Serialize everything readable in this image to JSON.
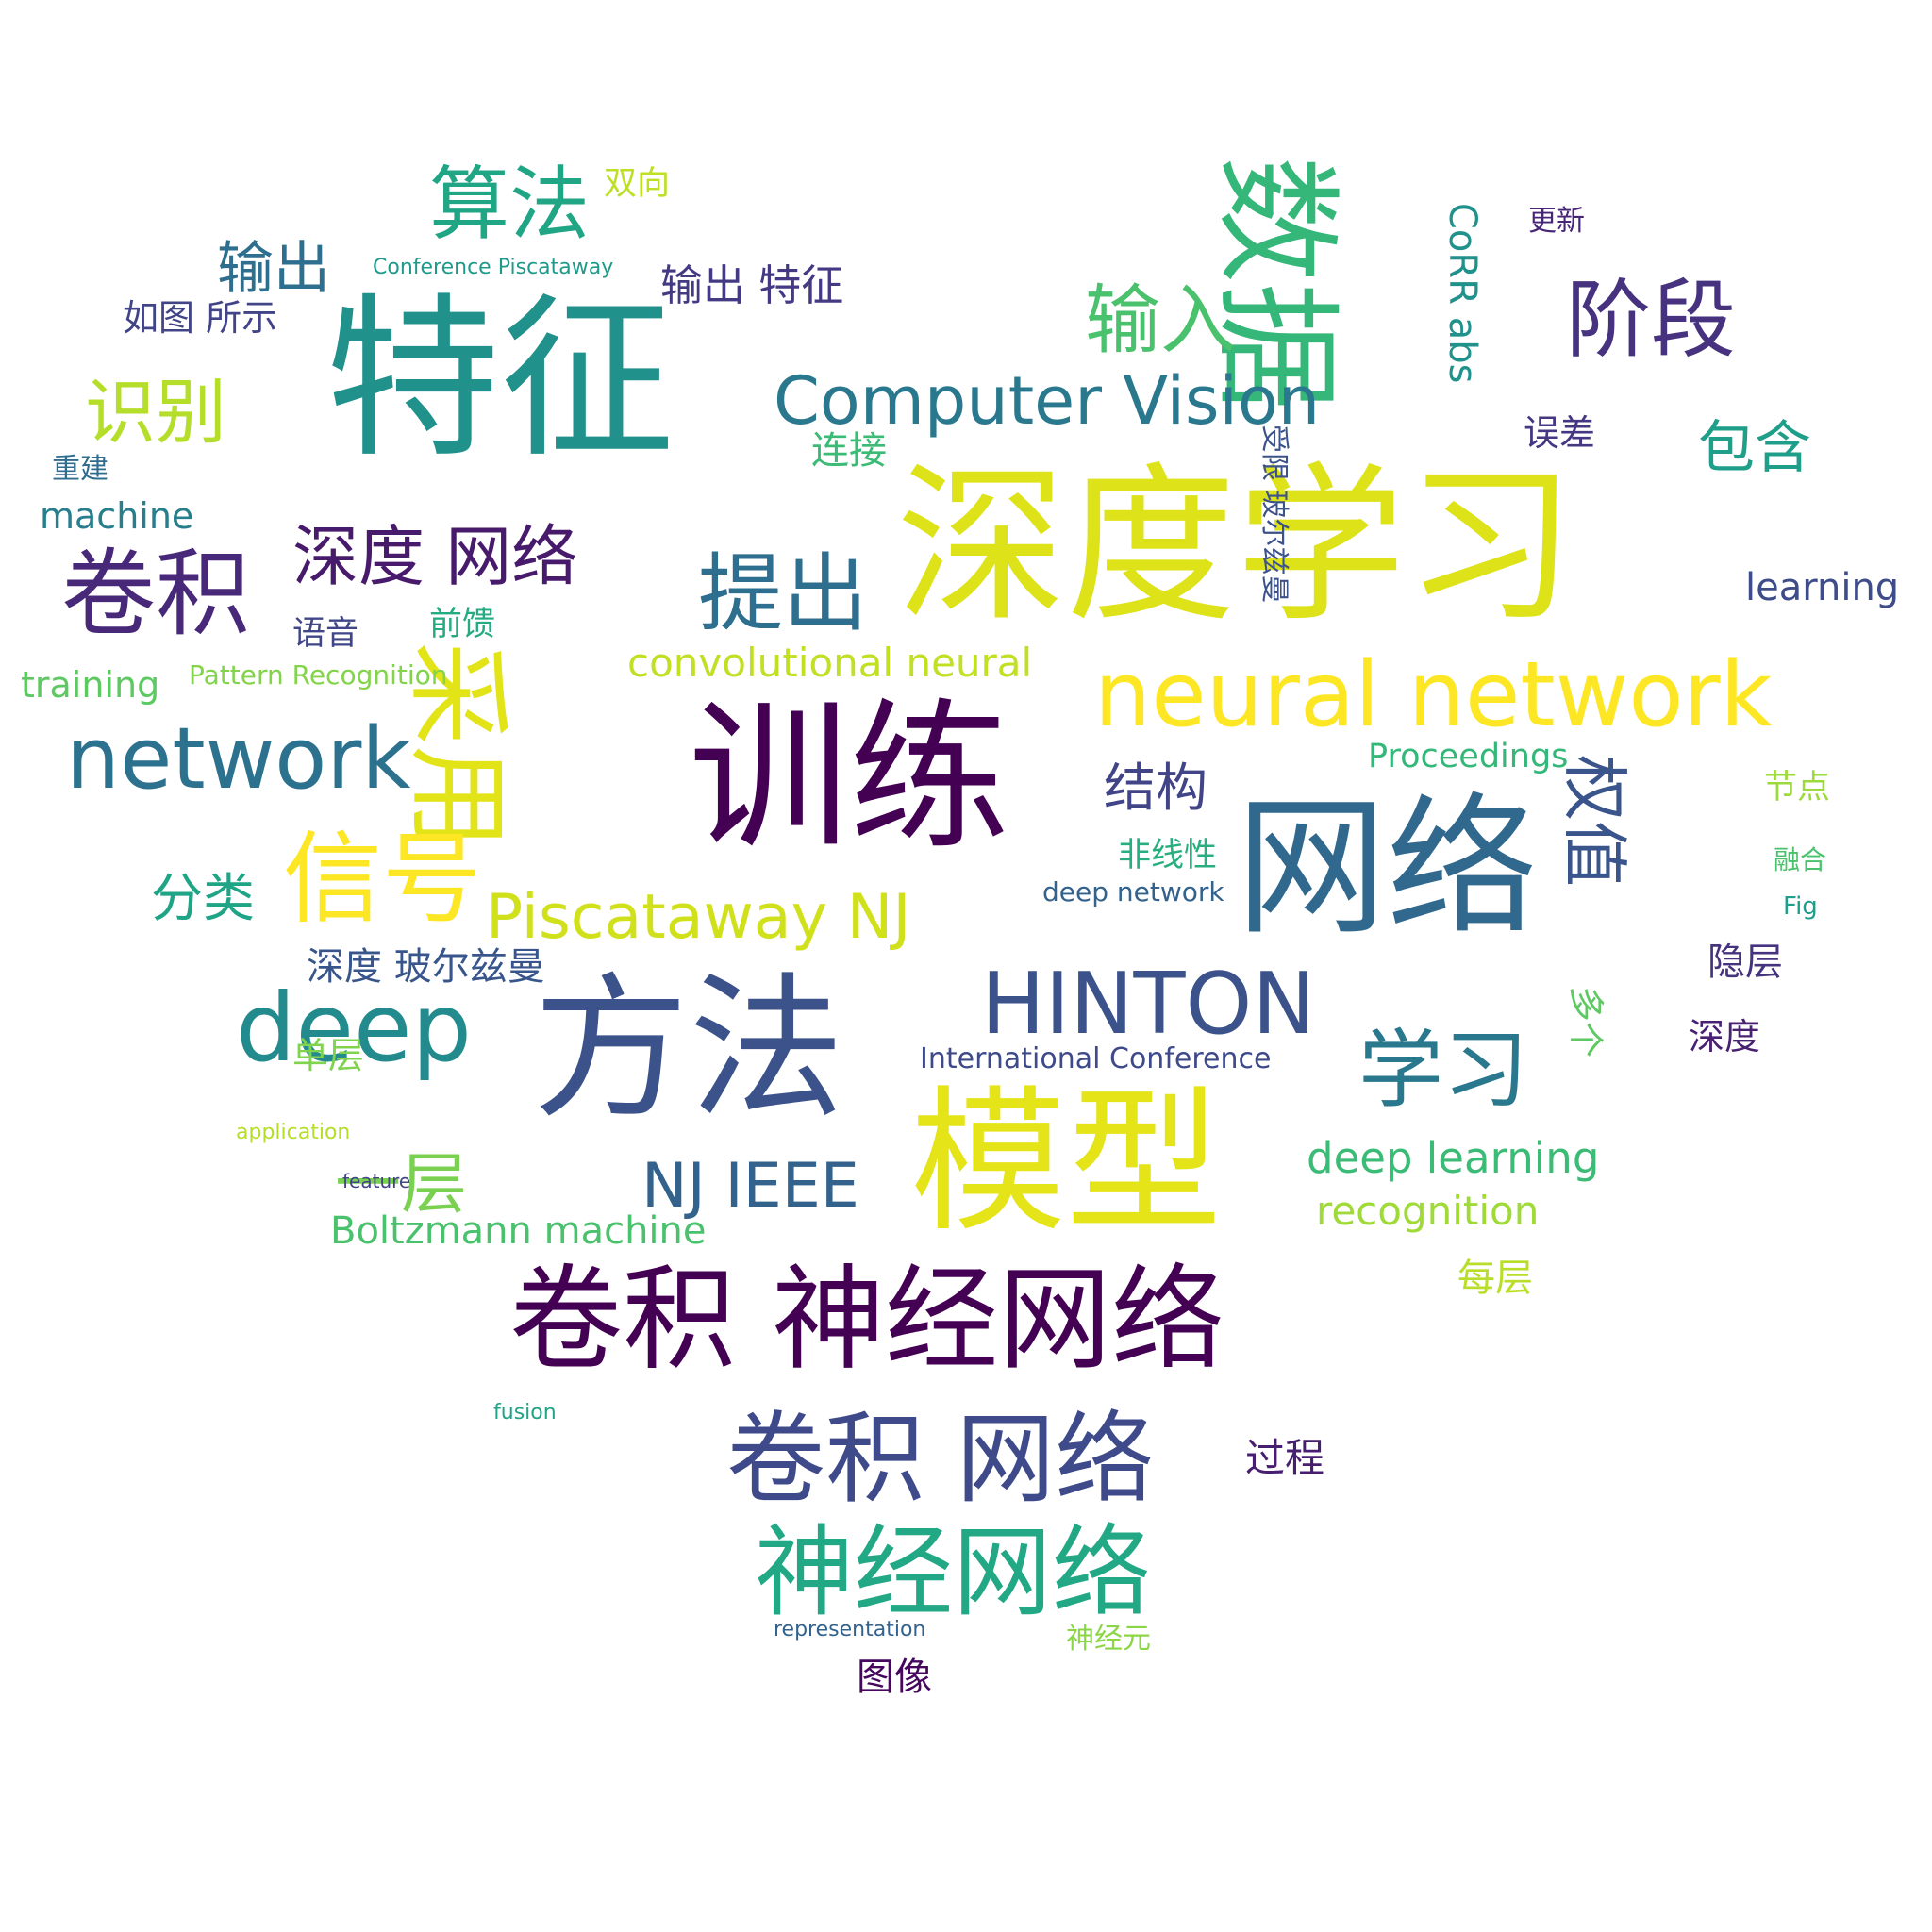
{
  "cloud": {
    "words": [
      {
        "text": "深度学习",
        "color": "#dde318"
      },
      {
        "text": "特征",
        "color": "#21918c"
      },
      {
        "text": "训练",
        "color": "#440154"
      },
      {
        "text": "模型",
        "color": "#e5e419"
      },
      {
        "text": "方法",
        "color": "#3b528b"
      },
      {
        "text": "网络",
        "color": "#31688e"
      },
      {
        "text": "数据",
        "color": "#35b779"
      },
      {
        "text": "卷积 神经网络",
        "color": "#440154"
      },
      {
        "text": "neural network",
        "color": "#fde725"
      },
      {
        "text": "卷积 网络",
        "color": "#3e4a89"
      },
      {
        "text": "采用",
        "color": "#e2e418"
      },
      {
        "text": "network",
        "color": "#2c728e"
      },
      {
        "text": "卷积",
        "color": "#482878"
      },
      {
        "text": "Computer Vision",
        "color": "#2a788e"
      },
      {
        "text": "HINTON",
        "color": "#3b528b"
      },
      {
        "text": "deep",
        "color": "#238a8d"
      },
      {
        "text": "算法",
        "color": "#21a685"
      },
      {
        "text": "阶段",
        "color": "#46327e"
      },
      {
        "text": "信号",
        "color": "#fde725"
      },
      {
        "text": "神经网络",
        "color": "#22a884"
      },
      {
        "text": "提出",
        "color": "#2e6e8e"
      },
      {
        "text": "Piscataway NJ",
        "color": "#d0e11c"
      },
      {
        "text": "学习",
        "color": "#2a788e"
      },
      {
        "text": "输入",
        "color": "#4ac16d"
      },
      {
        "text": "识别",
        "color": "#b5de2b"
      },
      {
        "text": "深度 网络",
        "color": "#481a6c"
      },
      {
        "text": "权值",
        "color": "#3a548c"
      },
      {
        "text": "一层",
        "color": "#7ad151"
      },
      {
        "text": "输出",
        "color": "#2e6e8e"
      },
      {
        "text": "NJ IEEE",
        "color": "#33638d"
      },
      {
        "text": "convolutional neural",
        "color": "#c2df23"
      },
      {
        "text": "deep learning",
        "color": "#3bbb75"
      },
      {
        "text": "Boltzmann machine",
        "color": "#4ac16d"
      },
      {
        "text": "recognition",
        "color": "#a0da39"
      },
      {
        "text": "包含",
        "color": "#1f9e89"
      },
      {
        "text": "结构",
        "color": "#414487"
      },
      {
        "text": "分类",
        "color": "#20a486"
      },
      {
        "text": "learning",
        "color": "#3e4c8a"
      },
      {
        "text": "machine",
        "color": "#277f8e"
      },
      {
        "text": "training",
        "color": "#5ec962"
      },
      {
        "text": "Proceedings",
        "color": "#35b779"
      },
      {
        "text": "CoRR abs",
        "color": "#21918c"
      },
      {
        "text": "输出 特征",
        "color": "#443a83"
      },
      {
        "text": "深度 玻尔兹曼",
        "color": "#39568c"
      },
      {
        "text": "如图 所示",
        "color": "#414487"
      },
      {
        "text": "连接",
        "color": "#3bbb75"
      },
      {
        "text": "双向",
        "color": "#bddf26"
      },
      {
        "text": "误差",
        "color": "#453781"
      },
      {
        "text": "隐层",
        "color": "#46337f"
      },
      {
        "text": "多个",
        "color": "#5ec962"
      },
      {
        "text": "语音",
        "color": "#404688"
      },
      {
        "text": "前馈",
        "color": "#25ab82"
      },
      {
        "text": "非线性",
        "color": "#29af7f"
      },
      {
        "text": "节点",
        "color": "#9bd93c"
      },
      {
        "text": "受限 玻尔兹曼",
        "color": "#3b528b"
      },
      {
        "text": "深度",
        "color": "#482173"
      },
      {
        "text": "过程",
        "color": "#481f70"
      },
      {
        "text": "每层",
        "color": "#b8de29"
      },
      {
        "text": "单层",
        "color": "#7fd34e"
      },
      {
        "text": "重建",
        "color": "#2f6c8e"
      },
      {
        "text": "International Conference",
        "color": "#3e4a89"
      },
      {
        "text": "Pattern Recognition",
        "color": "#84d44b"
      },
      {
        "text": "deep network",
        "color": "#33638d"
      },
      {
        "text": "图像",
        "color": "#46085c"
      },
      {
        "text": "神经元",
        "color": "#8bd646"
      },
      {
        "text": "更新",
        "color": "#482677"
      },
      {
        "text": "融合",
        "color": "#4ac16d"
      },
      {
        "text": "Fig",
        "color": "#1f9e89"
      },
      {
        "text": "Conference Piscataway",
        "color": "#1f9a8a"
      },
      {
        "text": "feature",
        "color": "#414487"
      },
      {
        "text": "fusion",
        "color": "#20a386"
      },
      {
        "text": "application",
        "color": "#b5de2b"
      },
      {
        "text": "representation",
        "color": "#33638d"
      }
    ]
  }
}
